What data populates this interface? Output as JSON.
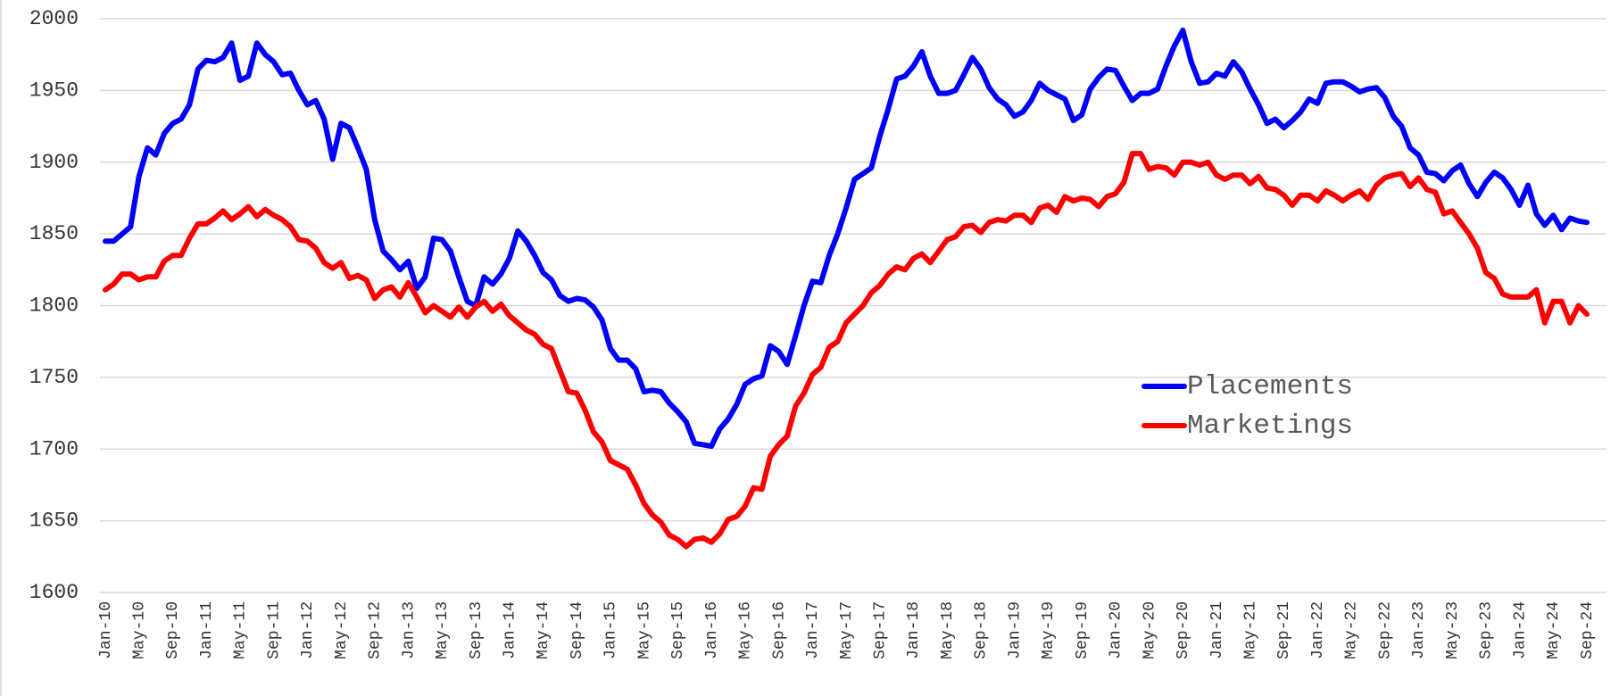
{
  "chart_data": {
    "type": "line",
    "categories": [
      "Jan-10",
      null,
      null,
      null,
      "May-10",
      null,
      null,
      null,
      "Sep-10",
      null,
      null,
      null,
      "Jan-11",
      null,
      null,
      null,
      "May-11",
      null,
      null,
      null,
      "Sep-11",
      null,
      null,
      null,
      "Jan-12",
      null,
      null,
      null,
      "May-12",
      null,
      null,
      null,
      "Sep-12",
      null,
      null,
      null,
      "Jan-13",
      null,
      null,
      null,
      "May-13",
      null,
      null,
      null,
      "Sep-13",
      null,
      null,
      null,
      "Jan-14",
      null,
      null,
      null,
      "May-14",
      null,
      null,
      null,
      "Sep-14",
      null,
      null,
      null,
      "Jan-15",
      null,
      null,
      null,
      "May-15",
      null,
      null,
      null,
      "Sep-15",
      null,
      null,
      null,
      "Jan-16",
      null,
      null,
      null,
      "May-16",
      null,
      null,
      null,
      "Sep-16",
      null,
      null,
      null,
      "Jan-17",
      null,
      null,
      null,
      "May-17",
      null,
      null,
      null,
      "Sep-17",
      null,
      null,
      null,
      "Jan-18",
      null,
      null,
      null,
      "May-18",
      null,
      null,
      null,
      "Sep-18",
      null,
      null,
      null,
      "Jan-19",
      null,
      null,
      null,
      "May-19",
      null,
      null,
      null,
      "Sep-19",
      null,
      null,
      null,
      "Jan-20",
      null,
      null,
      null,
      "May-20",
      null,
      null,
      null,
      "Sep-20",
      null,
      null,
      null,
      "Jan-21",
      null,
      null,
      null,
      "May-21",
      null,
      null,
      null,
      "Sep-21",
      null,
      null,
      null,
      "Jan-22",
      null,
      null,
      null,
      "May-22",
      null,
      null,
      null,
      "Sep-22",
      null,
      null,
      null,
      "Jan-23",
      null,
      null,
      null,
      "May-23",
      null,
      null,
      null,
      "Sep-23",
      null,
      null,
      null,
      "Jan-24",
      null,
      null,
      null,
      "May-24",
      null,
      null,
      null,
      "Sep-24"
    ],
    "series": [
      {
        "name": "Placements",
        "color": "#0000ff",
        "values": [
          1845,
          1845,
          1850,
          1855,
          1890,
          1910,
          1905,
          1920,
          1927,
          1930,
          1940,
          1965,
          1971,
          1970,
          1973,
          1983,
          1957,
          1960,
          1983,
          1975,
          1970,
          1961,
          1962,
          1950,
          1940,
          1943,
          1930,
          1902,
          1927,
          1924,
          1910,
          1895,
          1860,
          1838,
          1832,
          1825,
          1831,
          1812,
          1820,
          1847,
          1846,
          1838,
          1820,
          1803,
          1800,
          1820,
          1815,
          1822,
          1833,
          1852,
          1845,
          1835,
          1823,
          1818,
          1807,
          1803,
          1805,
          1804,
          1799,
          1790,
          1770,
          1762,
          1762,
          1756,
          1740,
          1741,
          1740,
          1732,
          1726,
          1719,
          1704,
          1703,
          1702,
          1714,
          1721,
          1731,
          1745,
          1749,
          1751,
          1772,
          1768,
          1759,
          1779,
          1800,
          1817,
          1816,
          1835,
          1850,
          1868,
          1888,
          1892,
          1896,
          1918,
          1937,
          1958,
          1960,
          1967,
          1977,
          1960,
          1948,
          1948,
          1950,
          1961,
          1973,
          1965,
          1952,
          1944,
          1940,
          1932,
          1935,
          1943,
          1955,
          1950,
          1947,
          1944,
          1929,
          1933,
          1951,
          1959,
          1965,
          1964,
          1953,
          1943,
          1948,
          1948,
          1951,
          1967,
          1981,
          1992,
          1970,
          1955,
          1956,
          1962,
          1960,
          1970,
          1963,
          1951,
          1940,
          1927,
          1930,
          1924,
          1929,
          1935,
          1944,
          1941,
          1955,
          1956,
          1956,
          1953,
          1949,
          1951,
          1952,
          1945,
          1932,
          1925,
          1910,
          1905,
          1893,
          1892,
          1887,
          1894,
          1898,
          1885,
          1876,
          1886,
          1893,
          1889,
          1881,
          1870,
          1884,
          1864,
          1856,
          1863,
          1853,
          1861,
          1859,
          1858
        ]
      },
      {
        "name": "Marketings",
        "color": "#ff0000",
        "values": [
          1811,
          1815,
          1822,
          1822,
          1818,
          1820,
          1820,
          1831,
          1835,
          1835,
          1847,
          1857,
          1857,
          1861,
          1866,
          1860,
          1864,
          1869,
          1862,
          1867,
          1863,
          1860,
          1855,
          1846,
          1845,
          1840,
          1830,
          1826,
          1830,
          1819,
          1821,
          1818,
          1805,
          1811,
          1813,
          1806,
          1816,
          1806,
          1795,
          1800,
          1796,
          1792,
          1799,
          1792,
          1799,
          1803,
          1796,
          1801,
          1793,
          1788,
          1783,
          1780,
          1773,
          1770,
          1755,
          1740,
          1739,
          1727,
          1712,
          1705,
          1692,
          1689,
          1686,
          1675,
          1662,
          1654,
          1649,
          1640,
          1637,
          1632,
          1637,
          1638,
          1635,
          1641,
          1651,
          1653,
          1660,
          1673,
          1672,
          1695,
          1703,
          1709,
          1730,
          1739,
          1752,
          1757,
          1771,
          1775,
          1788,
          1794,
          1800,
          1809,
          1814,
          1822,
          1827,
          1825,
          1833,
          1836,
          1830,
          1838,
          1846,
          1848,
          1855,
          1856,
          1851,
          1858,
          1860,
          1859,
          1863,
          1863,
          1858,
          1868,
          1870,
          1865,
          1876,
          1873,
          1875,
          1874,
          1869,
          1876,
          1878,
          1886,
          1906,
          1906,
          1895,
          1897,
          1896,
          1891,
          1900,
          1900,
          1898,
          1900,
          1891,
          1888,
          1891,
          1891,
          1885,
          1890,
          1882,
          1881,
          1877,
          1870,
          1877,
          1877,
          1873,
          1880,
          1877,
          1873,
          1877,
          1880,
          1874,
          1884,
          1889,
          1891,
          1892,
          1883,
          1889,
          1881,
          1879,
          1864,
          1866,
          1858,
          1850,
          1840,
          1823,
          1819,
          1808,
          1806,
          1806,
          1806,
          1811,
          1788,
          1803,
          1803,
          1788,
          1800,
          1794
        ]
      }
    ],
    "ylim": [
      1600,
      2000
    ],
    "yticks": [
      1600,
      1650,
      1700,
      1750,
      1800,
      1850,
      1900,
      1950,
      2000
    ],
    "grid": true,
    "legend": "right"
  }
}
